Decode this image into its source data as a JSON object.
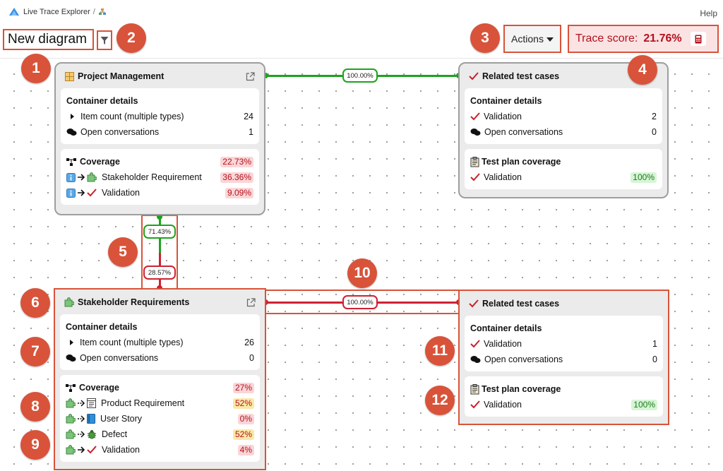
{
  "header": {
    "app_title": "Live Trace Explorer",
    "breadcrumb_sep": "/",
    "help": "Help",
    "diagram_name": "New diagram",
    "actions_label": "Actions",
    "trace_score_label": "Trace score:",
    "trace_score_value": "21.76%"
  },
  "badges": [
    "1",
    "2",
    "3",
    "4",
    "5",
    "6",
    "7",
    "8",
    "9",
    "10",
    "11",
    "12"
  ],
  "nodes": {
    "pm": {
      "title": "Project Management",
      "details_title": "Container details",
      "item_count_label": "Item count (multiple types)",
      "item_count": "24",
      "conversations_label": "Open conversations",
      "conversations": "1",
      "coverage_title": "Coverage",
      "coverage_pct": "22.73%",
      "coverage_rows": [
        {
          "label": "Stakeholder Requirement",
          "pct": "36.36%"
        },
        {
          "label": "Validation",
          "pct": "9.09%"
        }
      ]
    },
    "rtc1": {
      "title": "Related test cases",
      "details_title": "Container details",
      "validation_label": "Validation",
      "validation_count": "2",
      "conversations_label": "Open conversations",
      "conversations": "0",
      "plan_title": "Test plan coverage",
      "plan_row_label": "Validation",
      "plan_row_pct": "100%"
    },
    "sr": {
      "title": "Stakeholder Requirements",
      "details_title": "Container details",
      "item_count_label": "Item count (multiple types)",
      "item_count": "26",
      "conversations_label": "Open conversations",
      "conversations": "0",
      "coverage_title": "Coverage",
      "coverage_pct": "27%",
      "coverage_rows": [
        {
          "label": "Product Requirement",
          "pct": "52%"
        },
        {
          "label": "User Story",
          "pct": "0%"
        },
        {
          "label": "Defect",
          "pct": "52%"
        },
        {
          "label": "Validation",
          "pct": "4%"
        }
      ]
    },
    "rtc2": {
      "title": "Related test cases",
      "details_title": "Container details",
      "validation_label": "Validation",
      "validation_count": "1",
      "conversations_label": "Open conversations",
      "conversations": "0",
      "plan_title": "Test plan coverage",
      "plan_row_label": "Validation",
      "plan_row_pct": "100%"
    }
  },
  "edges": {
    "pm_rtc": "100.00%",
    "pm_sr_top": "71.43%",
    "pm_sr_bottom": "28.57%",
    "sr_rtc": "100.00%"
  },
  "colors": {
    "accent": "#d8533a",
    "green_link": "#1ea31e",
    "red_link": "#cc2233"
  },
  "icons": [
    "app-logo-icon",
    "diagram-icon",
    "filter-icon",
    "calculator-icon",
    "grid-icon",
    "external-link-icon",
    "check-icon",
    "chat-icon",
    "hierarchy-icon",
    "info-icon",
    "puzzle-icon",
    "document-icon",
    "book-icon",
    "bug-icon",
    "test-plan-icon",
    "arrow-icon",
    "dashed-arrow-icon"
  ]
}
